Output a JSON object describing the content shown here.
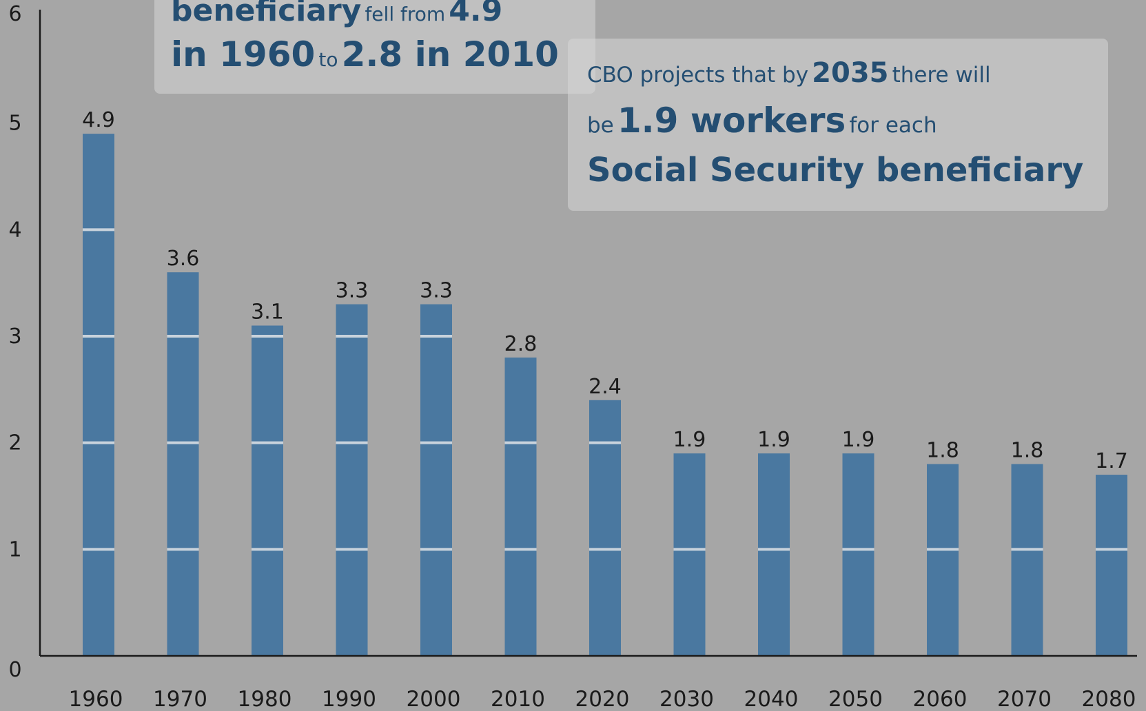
{
  "callout_left": {
    "line1_big": "beneficiary",
    "line1_small": "fell from",
    "line1_value": "4.9",
    "line2_year1": "in 1960",
    "line2_to": "to",
    "line2_value": "2.8 in 2010"
  },
  "callout_right": {
    "line1_a": "CBO projects that by",
    "line1_year": "2035",
    "line1_b": "there will",
    "line2_be": "be",
    "line2_big": "1.9 workers",
    "line2_small": "for each",
    "line3": "Social Security beneficiary"
  },
  "colors": {
    "background": "#a6a6a6",
    "bar": "#4a78a0",
    "segment_line": "#c9d3dc",
    "text_dark": "#244e72"
  },
  "chart_data": {
    "type": "bar",
    "categories": [
      "1960",
      "1970",
      "1980",
      "1990",
      "2000",
      "2010",
      "2020",
      "2030",
      "2040",
      "2050",
      "2060",
      "2070",
      "2080"
    ],
    "values": [
      4.9,
      3.6,
      3.1,
      3.3,
      3.3,
      2.8,
      2.4,
      1.9,
      1.9,
      1.9,
      1.8,
      1.8,
      1.7
    ],
    "value_labels": [
      "4.9",
      "3.6",
      "3.1",
      "3.3",
      "3.3",
      "2.8",
      "2.4",
      "1.9",
      "1.9",
      "1.9",
      "1.8",
      "1.8",
      "1.7"
    ],
    "y_ticks": [
      "0",
      "1",
      "2",
      "3",
      "4",
      "5",
      "6"
    ],
    "ylim": [
      0,
      6
    ],
    "grid": false,
    "legend": "none"
  }
}
